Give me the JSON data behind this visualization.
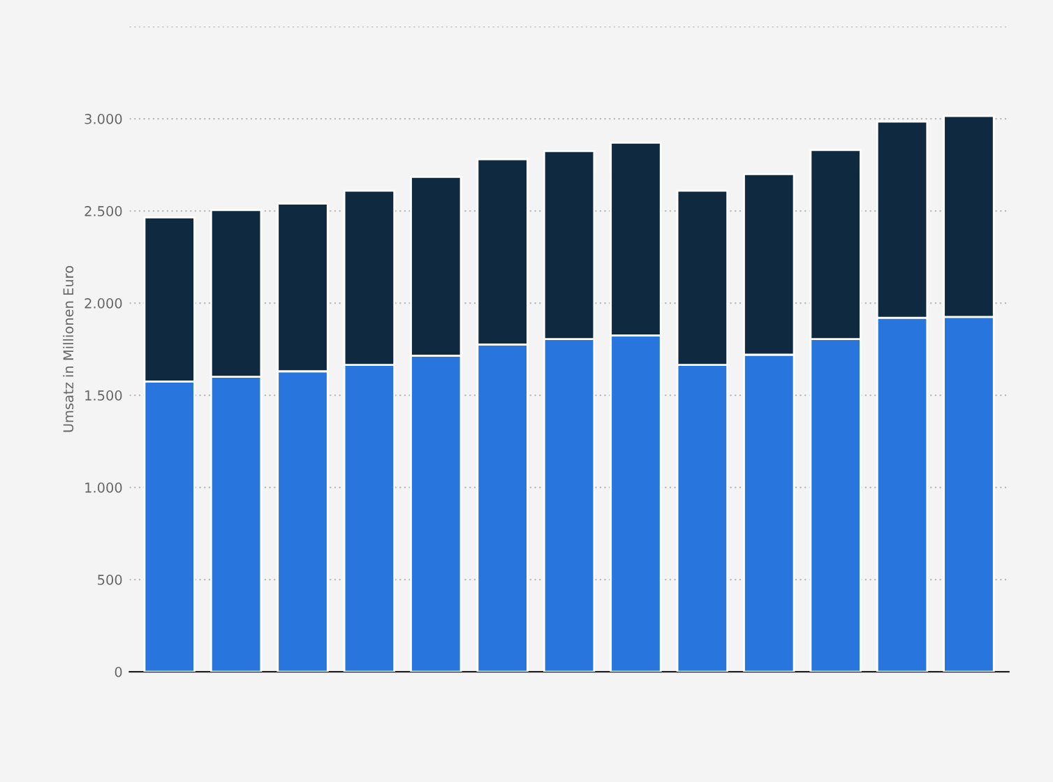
{
  "chart_data": {
    "type": "bar",
    "stacked": true,
    "ylabel": "Umsatz in Millionen Euro",
    "categories": [
      null,
      null,
      null,
      null,
      null,
      null,
      null,
      null,
      null,
      null,
      null,
      null,
      null
    ],
    "series": [
      {
        "color": "#2876dd",
        "values": [
          1575,
          1600,
          1630,
          1665,
          1715,
          1775,
          1805,
          1825,
          1665,
          1720,
          1805,
          1920,
          1925
        ]
      },
      {
        "color": "#0f2a40",
        "values": [
          890,
          905,
          910,
          945,
          970,
          1005,
          1020,
          1045,
          945,
          980,
          1025,
          1065,
          1090
        ]
      }
    ],
    "ylim": [
      0,
      3500
    ],
    "yticks": [
      {
        "value": 0,
        "label": "0"
      },
      {
        "value": 500,
        "label": "500"
      },
      {
        "value": 1000,
        "label": "1.000"
      },
      {
        "value": 1500,
        "label": "1.500"
      },
      {
        "value": 2000,
        "label": "2.000"
      },
      {
        "value": 2500,
        "label": "2.500"
      },
      {
        "value": 3000,
        "label": "3.000"
      },
      {
        "value": 3500,
        "label": null
      }
    ],
    "grid": "y"
  }
}
